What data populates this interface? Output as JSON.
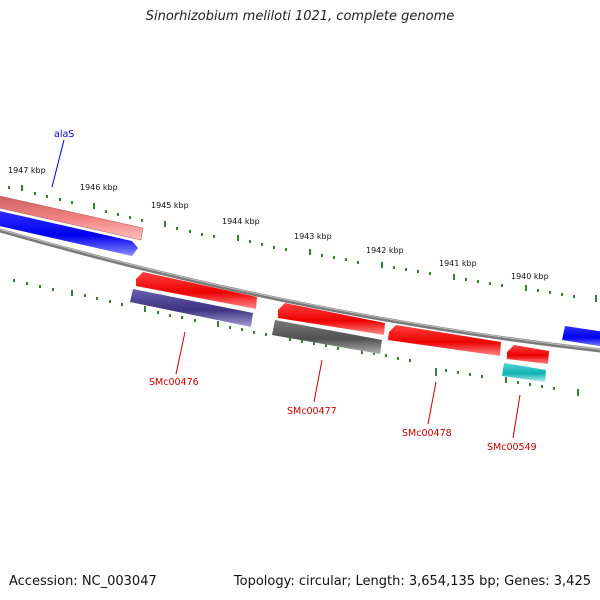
{
  "title": "Sinorhizobium meliloti 1021, complete genome",
  "accession_label": "Accession: NC_003047",
  "topology_summary": "Topology: circular; Length: 3,654,135 bp; Genes: 3,425",
  "ruler_ticks": [
    {
      "label": "1947 kbp"
    },
    {
      "label": "1946 kbp"
    },
    {
      "label": "1945 kbp"
    },
    {
      "label": "1944 kbp"
    },
    {
      "label": "1943 kbp"
    },
    {
      "label": "1942 kbp"
    },
    {
      "label": "1941 kbp"
    },
    {
      "label": "1940 kbp"
    }
  ],
  "features": [
    {
      "id": "alaS",
      "label": "alaS",
      "strand": "plus",
      "label_color": "#0000cc"
    },
    {
      "id": "SMc00476",
      "label": "SMc00476",
      "strand": "minus",
      "label_color": "#cc0000"
    },
    {
      "id": "SMc00477",
      "label": "SMc00477",
      "strand": "minus",
      "label_color": "#cc0000"
    },
    {
      "id": "SMc00478",
      "label": "SMc00478",
      "strand": "minus",
      "label_color": "#cc0000"
    },
    {
      "id": "SMc00549",
      "label": "SMc00549",
      "strand": "minus",
      "label_color": "#cc0000"
    }
  ],
  "colors": {
    "backbone": "#808080",
    "tick": "#006600",
    "gene_red": "#ff0000",
    "gene_blue": "#0000ff",
    "gene_pink": "#f08080",
    "gene_navy": "#4b3f8f",
    "gene_gray": "#555555",
    "gene_cyan": "#20c0c0"
  }
}
